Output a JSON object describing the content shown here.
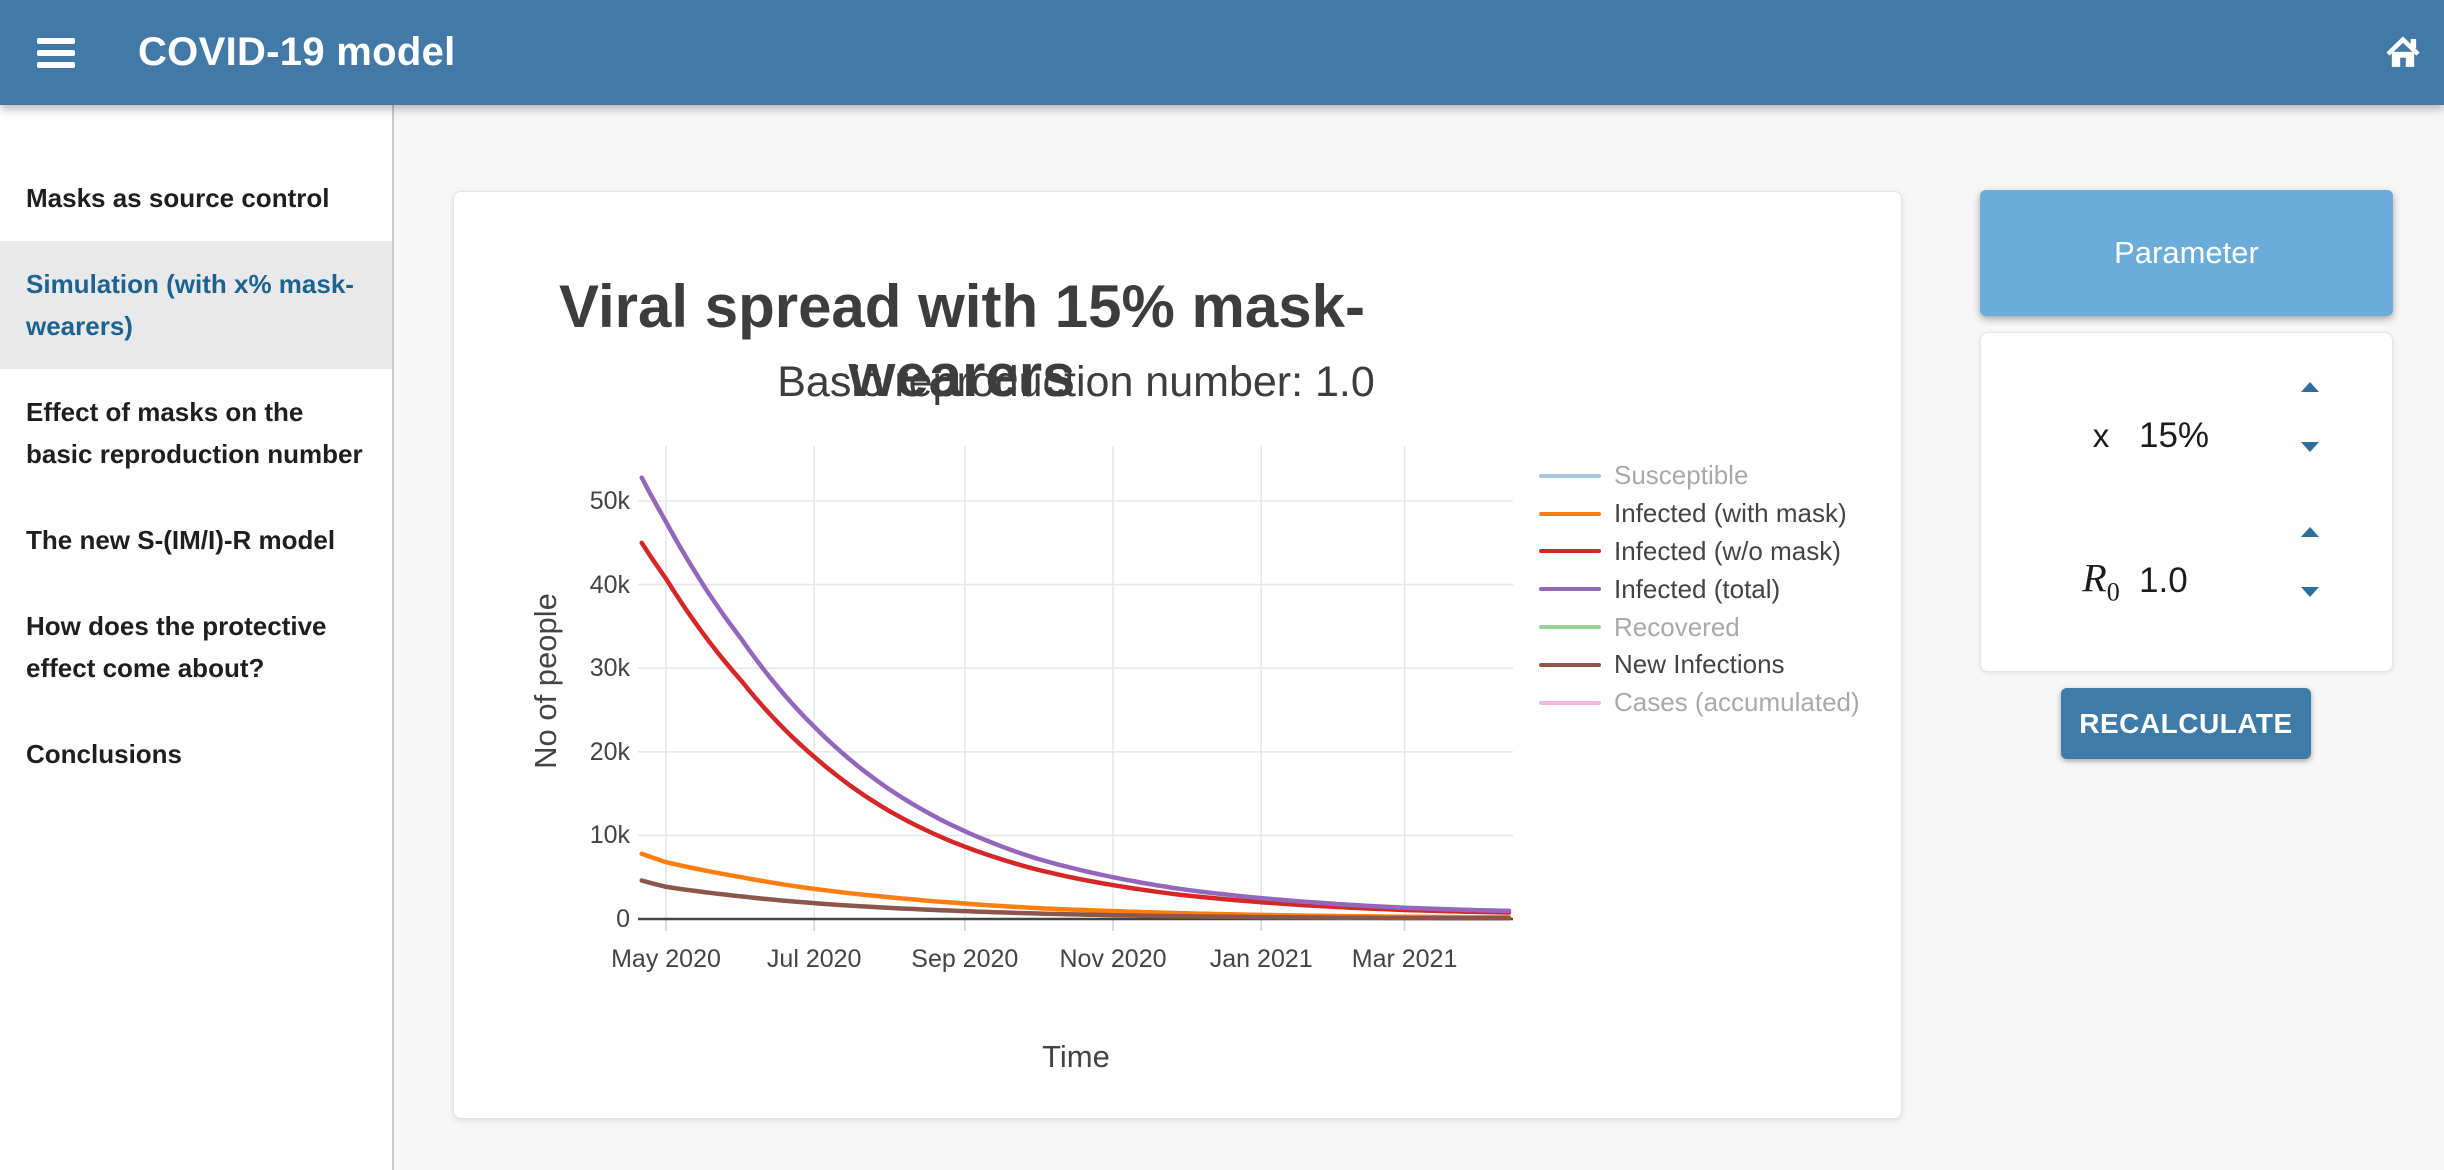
{
  "app_bar": {
    "title": "COVID-19 model"
  },
  "sidebar": {
    "items": [
      {
        "label": "Masks as source control",
        "selected": false
      },
      {
        "label": "Simulation (with x% mask-wearers)",
        "selected": true
      },
      {
        "label": "Effect of masks on the basic reproduction number",
        "selected": false
      },
      {
        "label": "The new S-(IM/I)-R model",
        "selected": false
      },
      {
        "label": "How does the protective effect come about?",
        "selected": false
      },
      {
        "label": "Conclusions",
        "selected": false
      }
    ]
  },
  "chart_data": {
    "type": "line",
    "title": "Viral spread with 15% mask-wearers",
    "subtitle": "Basic reproduction number: 1.0",
    "xlabel": "Time",
    "ylabel": "No of people",
    "ylim": [
      0,
      56000
    ],
    "grid": true,
    "legend_position": "right",
    "note_dimmed_legend_means_trace_hidden": true,
    "x_dates": [
      "2020-04-21",
      "2020-05-01",
      "2020-06-01",
      "2020-07-01",
      "2020-08-01",
      "2020-09-01",
      "2020-10-01",
      "2020-11-01",
      "2020-12-01",
      "2021-01-01",
      "2021-02-01",
      "2021-03-01",
      "2021-04-01",
      "2021-04-13"
    ],
    "series": [
      {
        "name": "Susceptible",
        "color": "#a6c9e2",
        "hidden": true,
        "values": null
      },
      {
        "name": "Infected (with mask)",
        "color": "#ff7f0e",
        "hidden": false,
        "values": [
          7800,
          6800,
          5000,
          3600,
          2600,
          1850,
          1300,
          950,
          680,
          490,
          360,
          270,
          210,
          200
        ]
      },
      {
        "name": "Infected (w/o mask)",
        "color": "#d62728",
        "hidden": false,
        "values": [
          45000,
          40700,
          28500,
          19400,
          12900,
          8650,
          5900,
          4050,
          2820,
          2010,
          1440,
          1080,
          840,
          780
        ]
      },
      {
        "name": "Infected (total)",
        "color": "#9467bd",
        "hidden": false,
        "values": [
          52800,
          47500,
          33500,
          23000,
          15500,
          10500,
          7200,
          5000,
          3500,
          2500,
          1800,
          1350,
          1050,
          980
        ]
      },
      {
        "name": "Recovered",
        "color": "#98d594",
        "hidden": true,
        "values": null
      },
      {
        "name": "New Infections",
        "color": "#8c564b",
        "hidden": false,
        "values": [
          4600,
          3850,
          2700,
          1900,
          1330,
          940,
          660,
          460,
          325,
          230,
          160,
          115,
          85,
          78
        ]
      },
      {
        "name": "Cases (accumulated)",
        "color": "#f4b8dc",
        "hidden": true,
        "values": null
      }
    ],
    "yticks": [
      {
        "label": "0",
        "value": 0
      },
      {
        "label": "10k",
        "value": 10000
      },
      {
        "label": "20k",
        "value": 20000
      },
      {
        "label": "30k",
        "value": 30000
      },
      {
        "label": "40k",
        "value": 40000
      },
      {
        "label": "50k",
        "value": 50000
      }
    ],
    "xticks": [
      {
        "label": "May 2020",
        "date": "2020-05-01"
      },
      {
        "label": "Jul 2020",
        "date": "2020-07-01"
      },
      {
        "label": "Sep 2020",
        "date": "2020-09-01"
      },
      {
        "label": "Nov 2020",
        "date": "2020-11-01"
      },
      {
        "label": "Jan 2021",
        "date": "2021-01-01"
      },
      {
        "label": "Mar 2021",
        "date": "2021-03-01"
      }
    ]
  },
  "panel": {
    "title": "Parameter",
    "rows": [
      {
        "label": "x",
        "sub": "",
        "value": "15%"
      },
      {
        "label": "R",
        "sub": "0",
        "value": "1.0"
      }
    ],
    "recalculate_label": "RECALCULATE"
  }
}
